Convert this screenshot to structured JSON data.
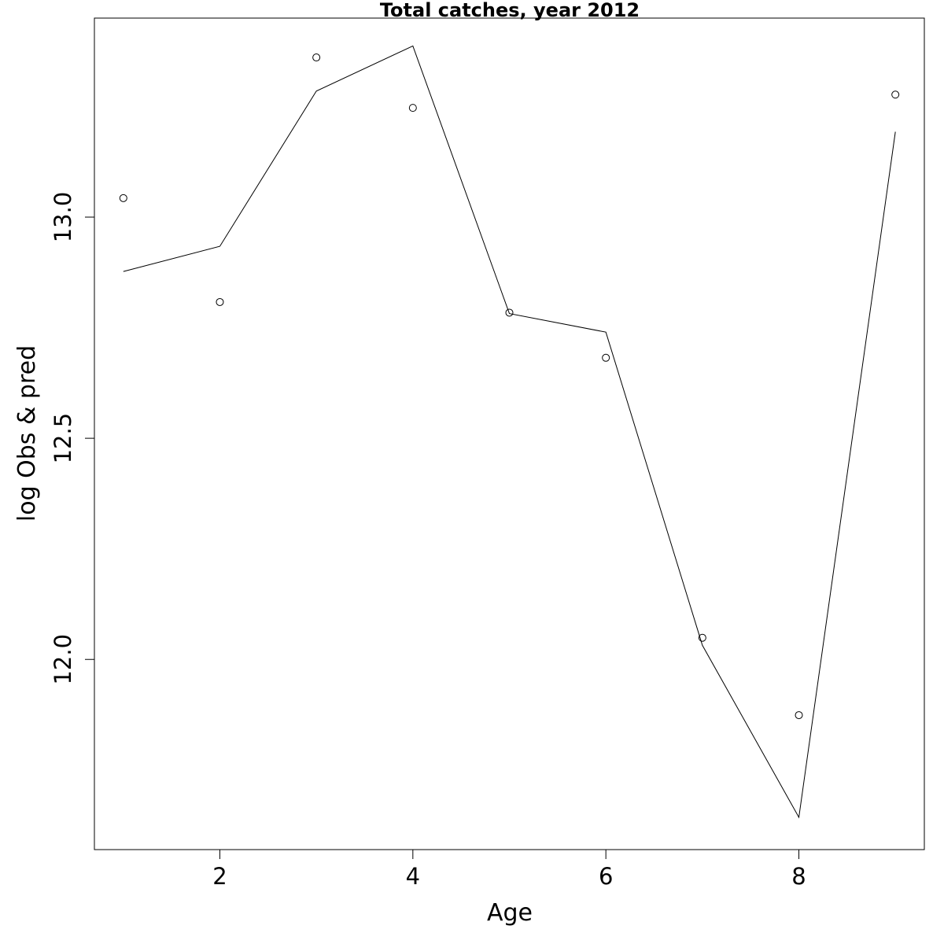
{
  "chart_data": {
    "type": "line",
    "title": "Total catches, year 2012",
    "xlabel": "Age",
    "ylabel": "log Obs & pred",
    "xlim": [
      0.7,
      9.3
    ],
    "ylim": [
      11.57,
      13.45
    ],
    "x_ticks": [
      2,
      4,
      6,
      8
    ],
    "x_tick_labels": [
      "2",
      "4",
      "6",
      "8"
    ],
    "y_ticks": [
      12.0,
      12.5,
      13.0
    ],
    "y_tick_labels": [
      "12.0",
      "12.5",
      "13.0"
    ],
    "grid": false,
    "x": [
      1,
      2,
      3,
      4,
      5,
      6,
      7,
      8,
      9
    ],
    "series": [
      {
        "style": "line",
        "values": [
          12.877,
          12.934,
          13.285,
          13.387,
          12.782,
          12.74,
          12.032,
          11.643,
          13.193
        ]
      },
      {
        "style": "points",
        "values": [
          13.043,
          12.808,
          13.361,
          13.247,
          12.784,
          12.682,
          12.049,
          11.874,
          13.277
        ]
      }
    ]
  }
}
